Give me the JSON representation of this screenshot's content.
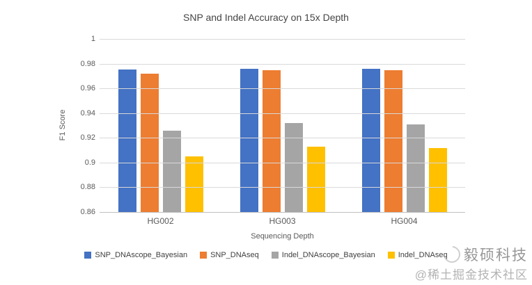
{
  "chart_data": {
    "type": "bar",
    "title": "SNP and Indel Accuracy on 15x Depth",
    "xlabel": "Sequencing Depth",
    "ylabel": "F1 Score",
    "categories": [
      "HG002",
      "HG003",
      "HG004"
    ],
    "series": [
      {
        "name": "SNP_DNAscope_Bayesian",
        "color": "#4472C4",
        "values": [
          0.975,
          0.976,
          0.976
        ]
      },
      {
        "name": "SNP_DNAseq",
        "color": "#ED7D31",
        "values": [
          0.972,
          0.9745,
          0.9745
        ]
      },
      {
        "name": "Indel_DNAscope_Bayesian",
        "color": "#A5A5A5",
        "values": [
          0.926,
          0.932,
          0.931
        ]
      },
      {
        "name": "Indel_DNAseq",
        "color": "#FFC000",
        "values": [
          0.905,
          0.913,
          0.912
        ]
      }
    ],
    "ylim": [
      0.86,
      1.0
    ],
    "yticks": [
      "1",
      "0.98",
      "0.96",
      "0.94",
      "0.92",
      "0.9",
      "0.88",
      "0.86"
    ],
    "grid": true,
    "legend_position": "bottom",
    "colors": {
      "gridline": "#d9d9d9",
      "axisline": "#bfbfbf",
      "axis_text": "#595959",
      "title_text": "#444444"
    }
  },
  "watermark": {
    "brand": "毅硕科技",
    "community": "@稀土掘金技术社区"
  }
}
